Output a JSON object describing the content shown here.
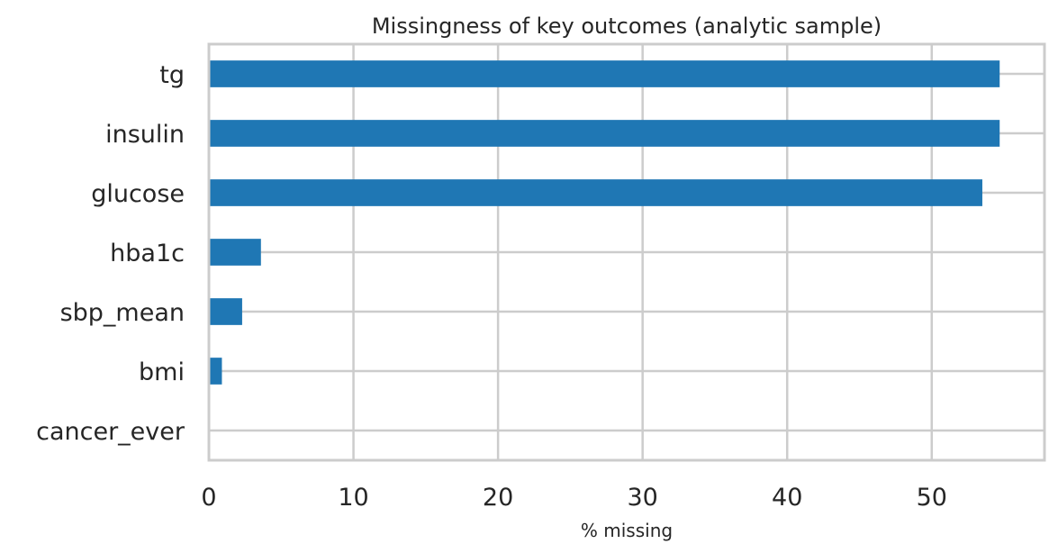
{
  "chart_data": {
    "type": "bar",
    "orientation": "horizontal",
    "title": "Missingness of key outcomes (analytic sample)",
    "xlabel": "% missing",
    "ylabel": "",
    "categories": [
      "tg",
      "insulin",
      "glucose",
      "hba1c",
      "sbp_mean",
      "bmi",
      "cancer_ever"
    ],
    "values": [
      54.7,
      54.7,
      53.5,
      3.6,
      2.3,
      0.9,
      0.0
    ],
    "xlim": [
      0,
      57.8
    ],
    "xticks": [
      0,
      10,
      20,
      30,
      40,
      50
    ],
    "xtick_labels": [
      "0",
      "10",
      "20",
      "30",
      "40",
      "50"
    ],
    "grid": true,
    "bar_color": "#1f77b4",
    "grid_color": "#cccccc"
  }
}
